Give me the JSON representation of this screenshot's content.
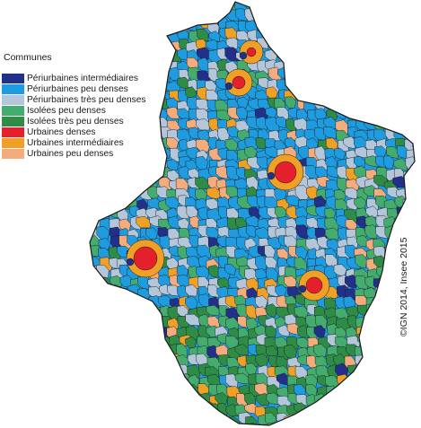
{
  "legend": {
    "title": "Communes",
    "items": [
      {
        "label": "Périurbaines intermédiaires",
        "color": "#22308a"
      },
      {
        "label": "Périurbaines peu denses",
        "color": "#1f9ce0"
      },
      {
        "label": "Périurbaines très peu denses",
        "color": "#b4c6da"
      },
      {
        "label": "Isolées peu denses",
        "color": "#44ac6e"
      },
      {
        "label": "Isolées très peu denses",
        "color": "#2e8c46"
      },
      {
        "label": "Urbaines denses",
        "color": "#e3202b"
      },
      {
        "label": "Urbaines intermédiaires",
        "color": "#f0a024"
      },
      {
        "label": "Urbaines peu denses",
        "color": "#f4ac7c"
      }
    ]
  },
  "credit": "©IGN 2014, Insee 2015",
  "map": {
    "region": "commune-type choropleth",
    "boundary_color": "#1a1a1a"
  }
}
